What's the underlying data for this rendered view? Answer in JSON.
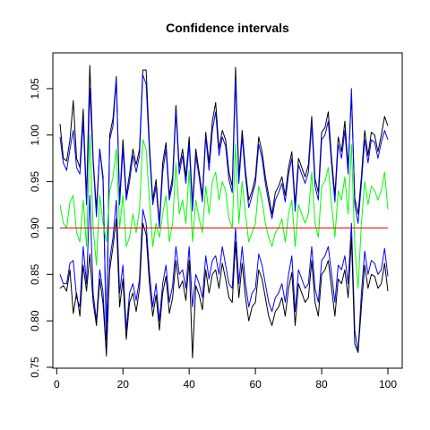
{
  "chart_data": {
    "type": "line",
    "title": "Confidence intervals",
    "xlabel": "",
    "ylabel": "",
    "xlim": [
      0,
      100
    ],
    "ylim": [
      0.75,
      1.075
    ],
    "x_ticks": [
      0,
      20,
      40,
      60,
      80,
      100
    ],
    "x_tick_labels": [
      "0",
      "20",
      "40",
      "60",
      "80",
      "100"
    ],
    "y_ticks": [
      0.75,
      0.8,
      0.85,
      0.9,
      0.95,
      1.0,
      1.05
    ],
    "y_tick_labels": [
      "0.75",
      "0.80",
      "0.85",
      "0.90",
      "0.95",
      "1.00",
      "1.05"
    ],
    "grid": false,
    "legend": "none",
    "x_start": 1,
    "x_end": 100,
    "series": [
      {
        "name": "",
        "color": "#000000",
        "values": [
          1.012,
          0.975,
          0.972,
          0.995,
          1.037,
          0.975,
          0.965,
          1.028,
          0.932,
          1.075,
          0.975,
          0.92,
          0.985,
          0.955,
          0.78,
          1.0,
          1.018,
          1.063,
          0.93,
          0.995,
          0.935,
          0.958,
          0.985,
          0.968,
          0.985,
          1.07,
          1.07,
          0.99,
          0.93,
          0.952,
          0.905,
          0.97,
          0.992,
          0.935,
          0.955,
          1.032,
          0.965,
          0.985,
          0.955,
          0.998,
          0.925,
          0.985,
          0.96,
          0.935,
          1.003,
          0.97,
          1.015,
          1.035,
          0.985,
          1.005,
          0.995,
          0.96,
          0.945,
          1.073,
          0.955,
          1.005,
          0.962,
          0.93,
          0.94,
          0.955,
          0.998,
          0.982,
          0.955,
          0.935,
          0.915,
          0.938,
          0.945,
          0.955,
          0.935,
          0.965,
          0.982,
          0.925,
          0.975,
          0.965,
          0.955,
          0.968,
          1.02,
          0.953,
          0.938,
          1.003,
          1.008,
          1.025,
          0.975,
          0.935,
          0.998,
          0.982,
          1.015,
          0.965,
          1.042,
          0.932,
          0.915,
          0.955,
          1.005,
          0.978,
          1.003,
          1.0,
          0.982,
          1.0,
          1.02,
          1.01
        ]
      },
      {
        "name": "",
        "color": "#0000ff",
        "values": [
          0.998,
          0.97,
          0.962,
          0.985,
          1.005,
          0.965,
          0.958,
          1.015,
          0.925,
          1.05,
          0.97,
          0.912,
          0.985,
          0.95,
          0.782,
          0.995,
          1.01,
          1.06,
          0.925,
          0.985,
          0.93,
          0.95,
          0.978,
          0.96,
          0.978,
          1.065,
          1.055,
          0.982,
          0.925,
          0.945,
          0.9,
          0.96,
          0.985,
          0.93,
          0.948,
          1.025,
          0.958,
          0.978,
          0.948,
          0.99,
          0.918,
          0.978,
          0.955,
          0.928,
          0.998,
          0.962,
          1.005,
          1.025,
          0.978,
          0.998,
          0.988,
          0.952,
          0.938,
          1.06,
          0.948,
          0.998,
          0.955,
          0.922,
          0.935,
          0.948,
          0.99,
          0.975,
          0.948,
          0.928,
          0.91,
          0.93,
          0.938,
          0.948,
          0.928,
          0.958,
          0.975,
          0.918,
          0.968,
          0.958,
          0.948,
          0.96,
          1.012,
          0.945,
          0.93,
          0.995,
          1.0,
          1.015,
          0.968,
          0.928,
          0.99,
          0.975,
          1.005,
          0.958,
          1.05,
          0.925,
          0.905,
          0.948,
          0.995,
          0.97,
          0.995,
          0.992,
          0.975,
          0.992,
          1.005,
          0.995
        ]
      },
      {
        "name": "",
        "color": "#00ff00",
        "values": [
          0.925,
          0.905,
          0.9,
          0.928,
          0.935,
          0.895,
          0.885,
          0.93,
          0.88,
          1.0,
          0.9,
          0.86,
          0.935,
          0.905,
          0.885,
          0.94,
          0.955,
          0.985,
          0.9,
          0.935,
          0.88,
          0.89,
          0.915,
          0.895,
          0.92,
          0.995,
          0.985,
          0.93,
          0.88,
          0.905,
          0.89,
          0.915,
          0.935,
          0.885,
          0.905,
          0.97,
          0.915,
          0.93,
          0.905,
          0.962,
          0.885,
          0.93,
          0.91,
          0.895,
          0.945,
          0.915,
          0.95,
          0.96,
          0.93,
          0.95,
          0.94,
          0.91,
          0.9,
          0.99,
          0.905,
          0.95,
          0.915,
          0.885,
          0.895,
          0.905,
          0.945,
          0.93,
          0.905,
          0.89,
          0.88,
          0.895,
          0.9,
          0.91,
          0.885,
          0.915,
          0.93,
          0.88,
          0.925,
          0.915,
          0.905,
          0.915,
          0.96,
          0.905,
          0.89,
          0.945,
          0.95,
          0.965,
          0.925,
          0.89,
          0.94,
          0.93,
          0.955,
          0.915,
          0.99,
          0.88,
          0.835,
          0.905,
          0.95,
          0.925,
          0.945,
          0.94,
          0.93,
          0.94,
          0.96,
          0.92
        ]
      },
      {
        "name": "",
        "color": "#0000ff",
        "values": [
          0.85,
          0.84,
          0.84,
          0.862,
          0.865,
          0.825,
          0.815,
          0.88,
          0.84,
          0.935,
          0.83,
          0.8,
          0.855,
          0.83,
          0.762,
          0.865,
          0.89,
          0.93,
          0.83,
          0.86,
          0.79,
          0.83,
          0.84,
          0.822,
          0.845,
          0.92,
          0.905,
          0.852,
          0.815,
          0.84,
          0.8,
          0.84,
          0.86,
          0.82,
          0.838,
          0.88,
          0.85,
          0.855,
          0.835,
          0.88,
          0.815,
          0.85,
          0.84,
          0.825,
          0.87,
          0.845,
          0.865,
          0.87,
          0.85,
          0.88,
          0.86,
          0.84,
          0.835,
          0.9,
          0.84,
          0.88,
          0.84,
          0.815,
          0.83,
          0.835,
          0.872,
          0.86,
          0.84,
          0.82,
          0.81,
          0.825,
          0.83,
          0.84,
          0.82,
          0.85,
          0.87,
          0.81,
          0.855,
          0.845,
          0.835,
          0.84,
          0.88,
          0.835,
          0.82,
          0.865,
          0.87,
          0.88,
          0.85,
          0.82,
          0.86,
          0.855,
          0.87,
          0.84,
          0.905,
          0.79,
          0.767,
          0.83,
          0.875,
          0.85,
          0.865,
          0.862,
          0.85,
          0.855,
          0.878,
          0.848
        ]
      },
      {
        "name": "",
        "color": "#000000",
        "values": [
          0.835,
          0.838,
          0.832,
          0.855,
          0.808,
          0.83,
          0.805,
          0.86,
          0.832,
          0.872,
          0.82,
          0.795,
          0.845,
          0.818,
          0.765,
          0.855,
          0.88,
          0.91,
          0.815,
          0.845,
          0.78,
          0.82,
          0.83,
          0.81,
          0.835,
          0.905,
          0.893,
          0.84,
          0.805,
          0.828,
          0.79,
          0.83,
          0.848,
          0.808,
          0.825,
          0.865,
          0.835,
          0.843,
          0.822,
          0.865,
          0.76,
          0.838,
          0.828,
          0.812,
          0.855,
          0.83,
          0.85,
          0.855,
          0.835,
          0.862,
          0.845,
          0.825,
          0.82,
          0.885,
          0.825,
          0.862,
          0.825,
          0.8,
          0.815,
          0.82,
          0.855,
          0.845,
          0.825,
          0.805,
          0.795,
          0.81,
          0.815,
          0.825,
          0.805,
          0.835,
          0.852,
          0.795,
          0.84,
          0.83,
          0.82,
          0.825,
          0.865,
          0.82,
          0.805,
          0.85,
          0.855,
          0.865,
          0.835,
          0.805,
          0.845,
          0.84,
          0.855,
          0.825,
          0.89,
          0.775,
          0.766,
          0.815,
          0.86,
          0.835,
          0.85,
          0.848,
          0.835,
          0.84,
          0.862,
          0.832
        ]
      }
    ],
    "reference_line": {
      "y": 0.9,
      "color": "#ff0000"
    }
  }
}
